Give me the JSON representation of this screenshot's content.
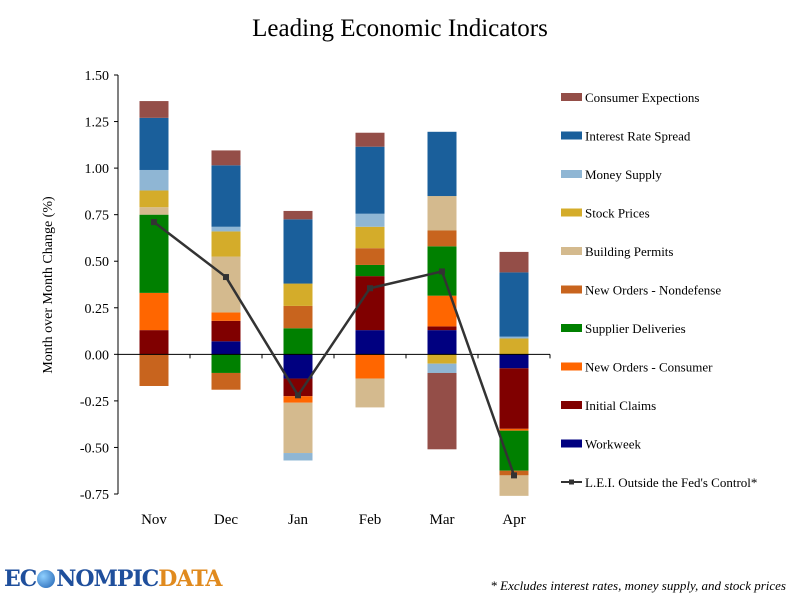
{
  "chart_data": {
    "type": "bar",
    "stacked": true,
    "title": "Leading Economic Indicators",
    "xlabel": "",
    "ylabel": "Month over Month Change (%)",
    "ylim": [
      -0.75,
      1.5
    ],
    "yticks": [
      "1.50",
      "1.25",
      "1.00",
      "0.75",
      "0.50",
      "0.25",
      "0.00",
      "-0.25",
      "-0.50",
      "-0.75"
    ],
    "ytick_values": [
      1.5,
      1.25,
      1.0,
      0.75,
      0.5,
      0.25,
      0.0,
      -0.25,
      -0.5,
      -0.75
    ],
    "categories": [
      "Nov",
      "Dec",
      "Jan",
      "Feb",
      "Mar",
      "Apr"
    ],
    "grid": false,
    "legend_position": "right",
    "series": [
      {
        "name": "Workweek",
        "color": "#000080",
        "values": [
          0.0,
          0.07,
          -0.13,
          0.13,
          0.13,
          -0.075
        ]
      },
      {
        "name": "Initial Claims",
        "color": "#800000",
        "values": [
          0.13,
          0.11,
          -0.095,
          0.29,
          0.02,
          -0.325
        ]
      },
      {
        "name": "New Orders - Consumer",
        "color": "#FF6600",
        "values": [
          0.2,
          0.045,
          -0.035,
          -0.13,
          0.165,
          -0.01
        ]
      },
      {
        "name": "Supplier Deliveries",
        "color": "#008000",
        "values": [
          0.42,
          -0.1,
          0.14,
          0.06,
          0.265,
          -0.215
        ]
      },
      {
        "name": "New Orders - Nondefense",
        "color": "#C8641E",
        "values": [
          -0.17,
          -0.09,
          0.12,
          0.09,
          0.085,
          -0.025
        ]
      },
      {
        "name": "Building Permits",
        "color": "#D4BA8E",
        "values": [
          0.04,
          0.3,
          -0.27,
          -0.155,
          0.185,
          -0.11
        ]
      },
      {
        "name": "Stock Prices",
        "color": "#D4AC2A",
        "values": [
          0.09,
          0.135,
          0.12,
          0.115,
          -0.05,
          0.085
        ]
      },
      {
        "name": "Money Supply",
        "color": "#8FB6D4",
        "values": [
          0.11,
          0.025,
          -0.04,
          0.07,
          -0.05,
          0.01
        ]
      },
      {
        "name": "Interest Rate Spread",
        "color": "#1A5F9B",
        "values": [
          0.28,
          0.33,
          0.345,
          0.36,
          0.345,
          0.345
        ]
      },
      {
        "name": "Consumer Expections",
        "color": "#944E48",
        "values": [
          0.09,
          0.08,
          0.045,
          0.075,
          -0.41,
          0.11
        ]
      }
    ],
    "line_series": {
      "name": "L.E.I. Outside the Fed's Control*",
      "color": "#333333",
      "values": [
        0.71,
        0.415,
        -0.22,
        0.355,
        0.445,
        -0.65
      ]
    },
    "legend": [
      "Consumer Expections",
      "Interest Rate Spread",
      "Money Supply",
      "Stock Prices",
      "Building Permits",
      "New Orders - Nondefense",
      "Supplier Deliveries",
      "New Orders - Consumer",
      "Initial Claims",
      "Workweek",
      "L.E.I. Outside the Fed's Control*"
    ]
  },
  "footer": {
    "logo_part1": "EC",
    "logo_part2": "NOMPIC",
    "logo_part3": "DATA",
    "footnote": "* Excludes interest rates, money supply, and stock prices"
  }
}
